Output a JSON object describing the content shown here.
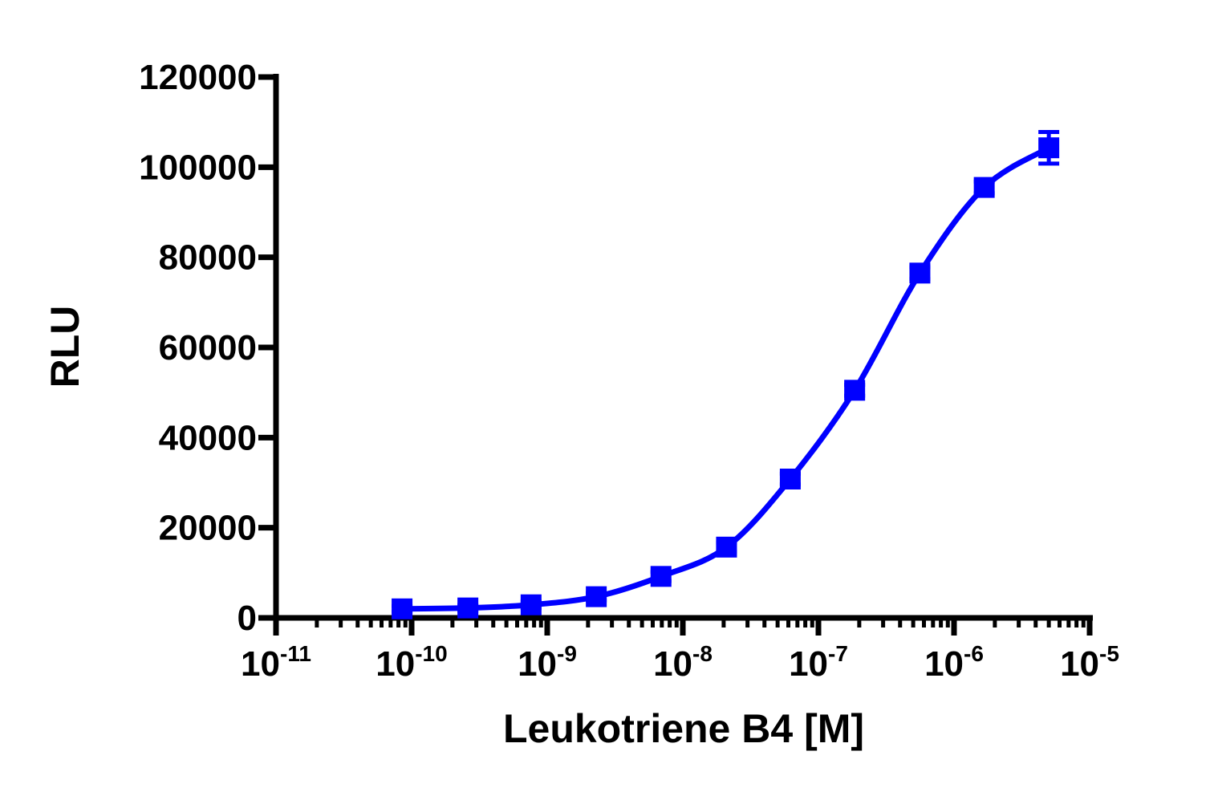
{
  "chart_data": {
    "type": "scatter",
    "title": "",
    "xlabel": "Leukotriene B4 [M]",
    "ylabel": "RLU",
    "x_scale": "log10",
    "xlim": [
      1e-11,
      1e-05
    ],
    "ylim": [
      0,
      120000
    ],
    "grid": false,
    "legend": "none",
    "x_ticks": [
      {
        "value": 1e-11,
        "base": "10",
        "exp": "-11"
      },
      {
        "value": 1e-10,
        "base": "10",
        "exp": "-10"
      },
      {
        "value": 1e-09,
        "base": "10",
        "exp": "-9"
      },
      {
        "value": 1e-08,
        "base": "10",
        "exp": "-8"
      },
      {
        "value": 1e-07,
        "base": "10",
        "exp": "-7"
      },
      {
        "value": 1e-06,
        "base": "10",
        "exp": "-6"
      },
      {
        "value": 1e-05,
        "base": "10",
        "exp": "-5"
      }
    ],
    "y_ticks": [
      "0",
      "20000",
      "40000",
      "60000",
      "80000",
      "100000",
      "120000"
    ],
    "series": [
      {
        "color": "#0000ff",
        "marker": "square",
        "x": [
          8.5e-11,
          2.6e-10,
          7.6e-10,
          2.3e-09,
          6.9e-09,
          2.1e-08,
          6.2e-08,
          1.85e-07,
          5.6e-07,
          1.67e-06,
          5e-06
        ],
        "y": [
          2000,
          2200,
          2900,
          4700,
          9200,
          15700,
          30800,
          50500,
          76500,
          95500,
          104300
        ],
        "error": [
          600,
          600,
          700,
          800,
          1000,
          1000,
          1200,
          1200,
          1300,
          1300,
          3500
        ]
      }
    ]
  }
}
